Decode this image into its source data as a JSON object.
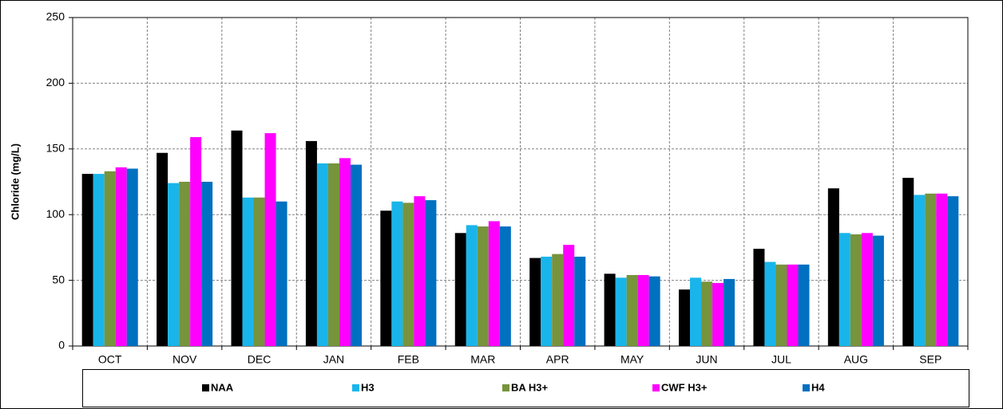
{
  "chart_data": {
    "type": "bar",
    "ylabel": "Chloride (mg/L)",
    "categories": [
      "OCT",
      "NOV",
      "DEC",
      "JAN",
      "FEB",
      "MAR",
      "APR",
      "MAY",
      "JUN",
      "JUL",
      "AUG",
      "SEP"
    ],
    "series": [
      {
        "name": "NAA",
        "color": "#000000",
        "values": [
          131,
          147,
          164,
          156,
          103,
          86,
          67,
          55,
          43,
          74,
          120,
          128
        ]
      },
      {
        "name": "H3",
        "color": "#19b5ea",
        "values": [
          131,
          124,
          113,
          139,
          110,
          92,
          68,
          52,
          52,
          64,
          86,
          115
        ]
      },
      {
        "name": "BA H3+",
        "color": "#77933c",
        "values": [
          133,
          125,
          113,
          139,
          109,
          91,
          70,
          54,
          49,
          62,
          85,
          116
        ]
      },
      {
        "name": "CWF H3+",
        "color": "#ff00ff",
        "values": [
          136,
          159,
          162,
          143,
          114,
          95,
          77,
          54,
          48,
          62,
          86,
          116
        ]
      },
      {
        "name": "H4",
        "color": "#0070c0",
        "values": [
          135,
          125,
          110,
          138,
          111,
          91,
          68,
          53,
          51,
          62,
          84,
          114
        ]
      }
    ],
    "ylim": [
      0,
      250
    ],
    "yticks": [
      0,
      50,
      100,
      150,
      200,
      250
    ],
    "grid": true
  }
}
